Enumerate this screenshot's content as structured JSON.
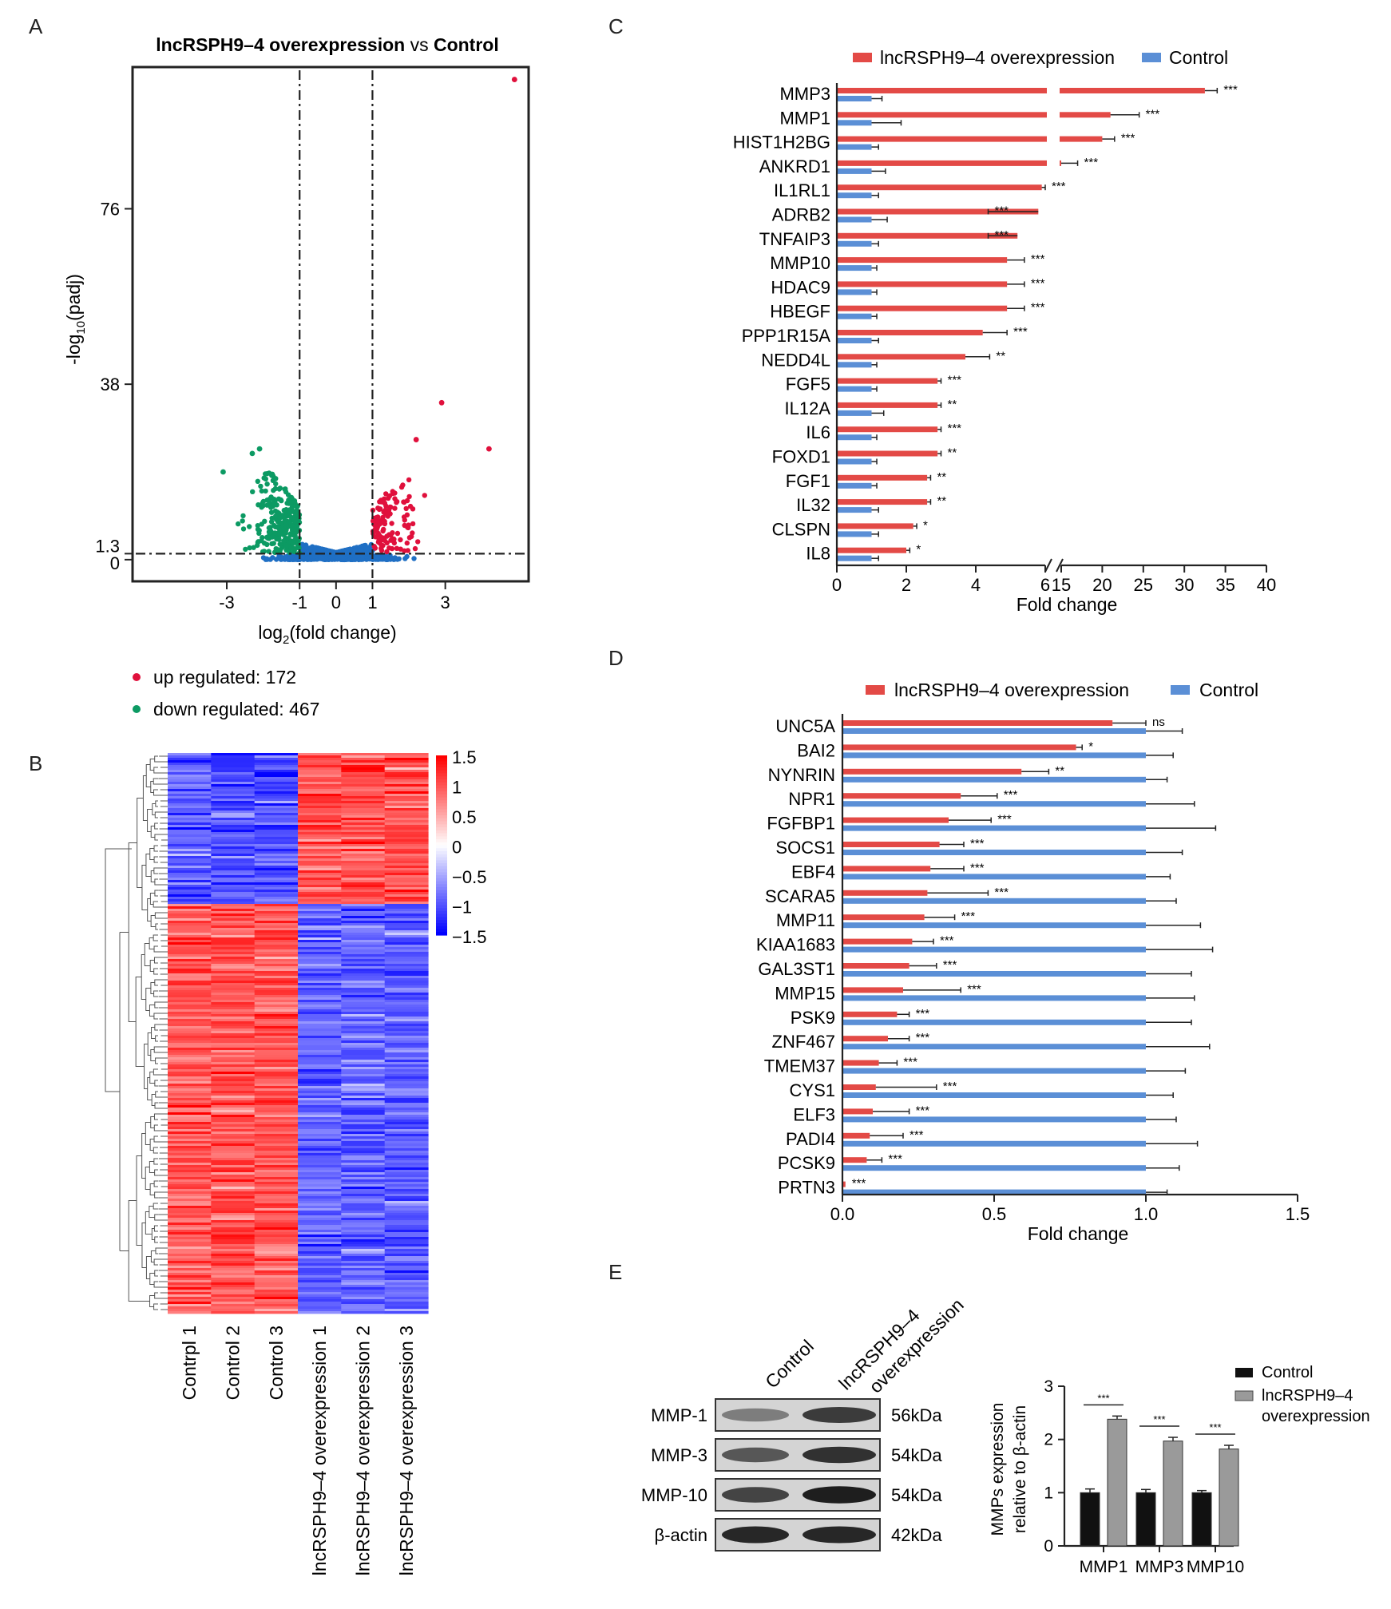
{
  "panel_labels": [
    "A",
    "B",
    "C",
    "D",
    "E"
  ],
  "colors": {
    "up": "#e0103c",
    "down": "#0c9a63",
    "ns": "#1f6fc4",
    "overexpression_bar": "#e34a46",
    "control_bar": "#5b8fd6",
    "heat_high": "#ff0000",
    "heat_mid": "#ffffff",
    "heat_low": "#0000ff",
    "wb_control_bar": "#111111",
    "wb_over_bar": "#9a9a9a"
  },
  "chart_data": [
    {
      "id": "A",
      "type": "scatter",
      "title_prefix": "lncRSPH9–4 overexpression",
      "title_vs": " vs ",
      "title_suffix": "Control",
      "xlabel_main": "log",
      "xlabel_sub": "2",
      "xlabel_rest": "(fold change)",
      "ylabel_main": "-log",
      "ylabel_sub": "10",
      "ylabel_rest": "(padj)",
      "xlim": [
        -5.5,
        5.2
      ],
      "ylim": [
        -4,
        106
      ],
      "x_ticks": [
        -3,
        -1,
        0,
        1,
        3
      ],
      "x_tick_labels": [
        "-3",
        "-1",
        "0",
        "1",
        "3"
      ],
      "y_ticks": [
        0,
        1.3,
        38,
        76
      ],
      "y_tick_labels": [
        "0",
        "1.3",
        "38",
        "76"
      ],
      "fold_cutoffs": [
        -1,
        1
      ],
      "padj_cutoff": 1.3,
      "legend": [
        {
          "label": "up regulated: 172",
          "color": "#e0103c"
        },
        {
          "label": "down regulated: 467",
          "color": "#0c9a63"
        }
      ],
      "outliers": [
        {
          "x": 4.9,
          "y": 104,
          "group": "up"
        },
        {
          "x": 2.9,
          "y": 34,
          "group": "up"
        },
        {
          "x": 4.2,
          "y": 24,
          "group": "up"
        },
        {
          "x": 2.2,
          "y": 26,
          "group": "up"
        },
        {
          "x": -2.1,
          "y": 24,
          "group": "down"
        },
        {
          "x": -2.3,
          "y": 23,
          "group": "down"
        },
        {
          "x": -3.1,
          "y": 19,
          "group": "down"
        }
      ]
    },
    {
      "id": "B",
      "type": "heatmap",
      "columns": [
        "Contrpl 1",
        "Control 2",
        "Control 3",
        "lncRSPH9–4 overexpression 1",
        "lncRSPH9–4 overexpression 2",
        "lncRSPH9–4 overexpression 3"
      ],
      "colorbar_ticks": [
        1.5,
        1,
        0.5,
        0,
        -0.5,
        -1,
        -1.5
      ],
      "colorbar_labels": [
        "1.5",
        "1",
        "0.5",
        "0",
        "−0.5",
        "−1",
        "−1.5"
      ],
      "n_up_rows": 172,
      "n_down_rows": 467,
      "zlim": [
        -1.5,
        1.5
      ]
    },
    {
      "id": "C",
      "type": "bar",
      "orientation": "horizontal",
      "legend": [
        "lncRSPH9–4 overexpression",
        "Control"
      ],
      "xlabel": "Fold change",
      "axis_break": [
        6,
        15
      ],
      "x_ticks_left": [
        0,
        2,
        4,
        6
      ],
      "x_ticks_right": [
        15,
        20,
        25,
        30,
        35,
        40
      ],
      "categories": [
        "MMP3",
        "MMP1",
        "HIST1H2BG",
        "ANKRD1",
        "IL1RL1",
        "ADRB2",
        "TNFAIP3",
        "MMP10",
        "HDAC9",
        "HBEGF",
        "PPP1R15A",
        "NEDD4L",
        "FGF5",
        "IL12A",
        "IL6",
        "FOXD1",
        "FGF1",
        "IL32",
        "CLSPN",
        "IL8"
      ],
      "series": [
        {
          "name": "lncRSPH9–4 overexpression",
          "values": [
            32.5,
            21.0,
            20.0,
            15.0,
            5.9,
            5.8,
            5.2,
            4.9,
            4.9,
            4.9,
            4.2,
            3.7,
            2.9,
            2.9,
            2.9,
            2.9,
            2.6,
            2.6,
            2.2,
            2.0
          ],
          "errors": [
            1.5,
            3.5,
            1.5,
            2.0,
            0.1,
            0.3,
            0.9,
            0.5,
            0.5,
            0.5,
            0.7,
            0.7,
            0.1,
            0.1,
            0.1,
            0.1,
            0.1,
            0.1,
            0.1,
            0.1
          ]
        },
        {
          "name": "Control",
          "values": [
            1.0,
            1.0,
            1.0,
            1.0,
            1.0,
            1.0,
            1.0,
            1.0,
            1.0,
            1.0,
            1.0,
            1.0,
            1.0,
            1.0,
            1.0,
            1.0,
            1.0,
            1.0,
            1.0,
            1.0
          ],
          "errors": [
            0.3,
            0.85,
            0.2,
            0.4,
            0.2,
            0.45,
            0.2,
            0.15,
            0.15,
            0.15,
            0.2,
            0.15,
            0.15,
            0.35,
            0.15,
            0.15,
            0.15,
            0.2,
            0.2,
            0.2
          ]
        }
      ],
      "significance": [
        "***",
        "***",
        "***",
        "***",
        "***",
        "***",
        "***",
        "***",
        "***",
        "***",
        "***",
        "**",
        "***",
        "**",
        "***",
        "**",
        "**",
        "**",
        "*",
        "*"
      ]
    },
    {
      "id": "D",
      "type": "bar",
      "orientation": "horizontal",
      "legend": [
        "lncRSPH9–4 overexpression",
        "Control"
      ],
      "xlabel": "Fold change",
      "xlim": [
        0,
        1.5
      ],
      "x_ticks": [
        0,
        0.5,
        1.0,
        1.5
      ],
      "x_tick_labels": [
        "0.0",
        "0.5",
        "1.0",
        "1.5"
      ],
      "categories": [
        "UNC5A",
        "BAI2",
        "NYNRIN",
        "NPR1",
        "FGFBP1",
        "SOCS1",
        "EBF4",
        "SCARA5",
        "MMP11",
        "KIAA1683",
        "GAL3ST1",
        "MMP15",
        "PSK9",
        "ZNF467",
        "TMEM37",
        "CYS1",
        "ELF3",
        "PADI4",
        "PCSK9",
        "PRTN3"
      ],
      "series": [
        {
          "name": "lncRSPH9–4 overexpression",
          "values": [
            0.89,
            0.77,
            0.59,
            0.39,
            0.35,
            0.32,
            0.29,
            0.28,
            0.27,
            0.23,
            0.22,
            0.2,
            0.18,
            0.15,
            0.12,
            0.11,
            0.1,
            0.09,
            0.08,
            0.01
          ],
          "errors": [
            0.11,
            0.02,
            0.09,
            0.12,
            0.14,
            0.08,
            0.11,
            0.2,
            0.1,
            0.07,
            0.09,
            0.19,
            0.04,
            0.07,
            0.06,
            0.2,
            0.12,
            0.11,
            0.05,
            0.0
          ]
        },
        {
          "name": "Control",
          "values": [
            1.0,
            1.0,
            1.0,
            1.0,
            1.0,
            1.0,
            1.0,
            1.0,
            1.0,
            1.0,
            1.0,
            1.0,
            1.0,
            1.0,
            1.0,
            1.0,
            1.0,
            1.0,
            1.0,
            1.0
          ],
          "errors": [
            0.12,
            0.09,
            0.07,
            0.16,
            0.23,
            0.12,
            0.08,
            0.1,
            0.18,
            0.22,
            0.15,
            0.16,
            0.15,
            0.21,
            0.13,
            0.09,
            0.1,
            0.17,
            0.11,
            0.07
          ]
        }
      ],
      "significance": [
        "ns",
        "*",
        "**",
        "***",
        "***",
        "***",
        "***",
        "***",
        "***",
        "***",
        "***",
        "***",
        "***",
        "***",
        "***",
        "***",
        "***",
        "***",
        "***",
        "***"
      ]
    },
    {
      "id": "E",
      "type": "bar",
      "orientation": "vertical",
      "categories": [
        "MMP1",
        "MMP3",
        "MMP10"
      ],
      "series": [
        {
          "name": "Control",
          "values": [
            1.0,
            1.0,
            1.0
          ],
          "errors": [
            0.07,
            0.06,
            0.04
          ]
        },
        {
          "name": "lncRSPH9–4 overexpression",
          "values": [
            2.38,
            1.97,
            1.82
          ],
          "errors": [
            0.06,
            0.07,
            0.07
          ]
        }
      ],
      "legend_control": "Control",
      "legend_over_line1": "lncRSPH9–4",
      "legend_over_line2": "overexpression",
      "ylabel_line1": "MMPs expression",
      "ylabel_line2": "relative to β-actin",
      "ylim": [
        0,
        3
      ],
      "y_ticks": [
        0,
        1,
        2,
        3
      ],
      "significance": [
        "***",
        "***",
        "***"
      ]
    }
  ],
  "western_blot": {
    "lane_labels": [
      "Control",
      "lncRSPH9–4",
      "overexpression"
    ],
    "rows": [
      {
        "protein": "MMP-1",
        "size": "56kDa",
        "control_intensity": 0.45,
        "over_intensity": 0.8
      },
      {
        "protein": "MMP-3",
        "size": "54kDa",
        "control_intensity": 0.65,
        "over_intensity": 0.85
      },
      {
        "protein": "MMP-10",
        "size": "54kDa",
        "control_intensity": 0.75,
        "over_intensity": 0.95
      },
      {
        "protein": "β-actin",
        "size": "42kDa",
        "control_intensity": 0.9,
        "over_intensity": 0.9
      }
    ]
  }
}
